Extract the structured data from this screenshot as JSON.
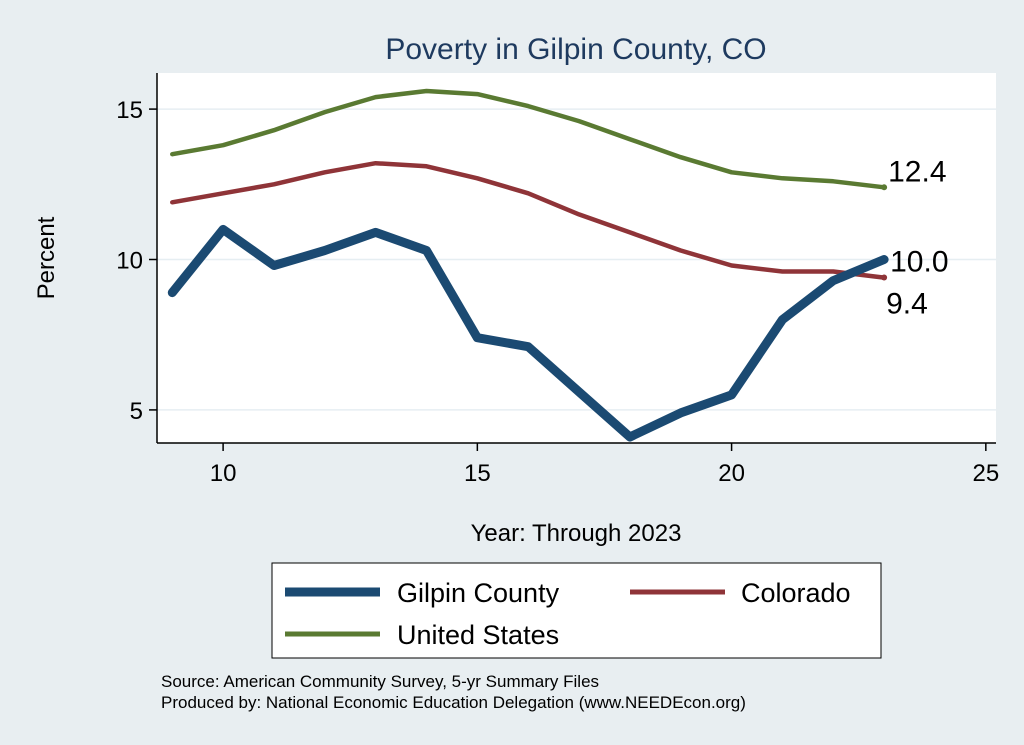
{
  "chart_data": {
    "type": "line",
    "title": "Poverty in Gilpin County, CO",
    "xlabel": "Year: Through 2023",
    "ylabel": "Percent",
    "xlim": [
      8.7,
      25.2
    ],
    "ylim": [
      3.9,
      16.2
    ],
    "xticks": [
      10,
      15,
      20,
      25
    ],
    "yticks": [
      5,
      10,
      15
    ],
    "grid": true,
    "legend_position": "bottom",
    "x": [
      9,
      10,
      11,
      12,
      13,
      14,
      15,
      16,
      17,
      18,
      19,
      20,
      21,
      22,
      23
    ],
    "series": [
      {
        "name": "Gilpin County",
        "color": "#1b4a72",
        "values": [
          8.9,
          11.0,
          9.8,
          10.3,
          10.9,
          10.3,
          7.4,
          7.1,
          5.6,
          4.1,
          4.9,
          5.5,
          8.0,
          9.3,
          10.0
        ],
        "end_label": "10.0"
      },
      {
        "name": "Colorado",
        "color": "#8f3438",
        "values": [
          11.9,
          12.2,
          12.5,
          12.9,
          13.2,
          13.1,
          12.7,
          12.2,
          11.5,
          10.9,
          10.3,
          9.8,
          9.6,
          9.6,
          9.4
        ],
        "end_label": "9.4"
      },
      {
        "name": "United States",
        "color": "#5a7a32",
        "values": [
          13.5,
          13.8,
          14.3,
          14.9,
          15.4,
          15.6,
          15.5,
          15.1,
          14.6,
          14.0,
          13.4,
          12.9,
          12.7,
          12.6,
          12.4
        ],
        "end_label": "12.4"
      }
    ]
  },
  "source_line1": "Source: American Community Survey, 5-yr Summary Files",
  "source_line2": "Produced by: National Economic Education Delegation (www.NEEDEcon.org)"
}
